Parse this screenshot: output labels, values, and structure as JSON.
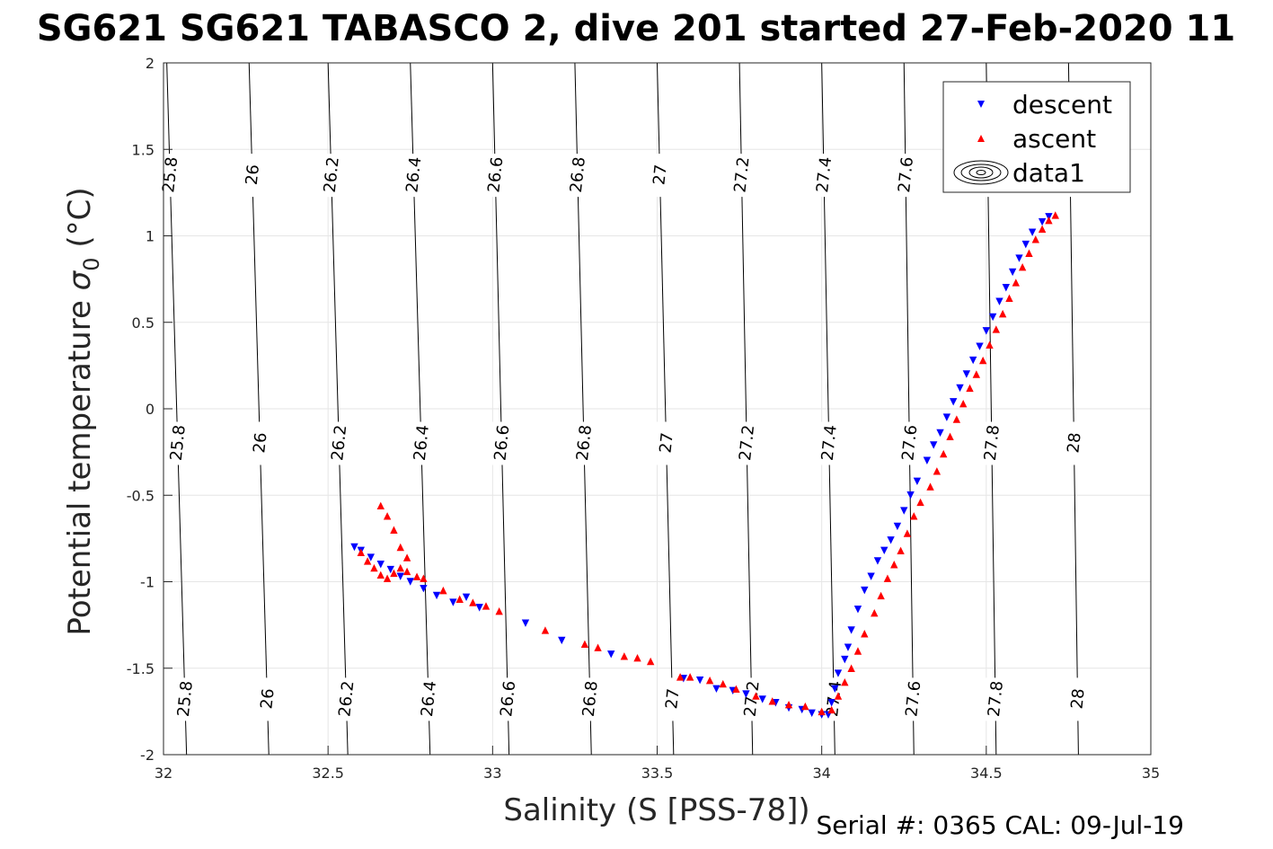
{
  "chart_data": {
    "type": "scatter",
    "title": "SG621 SG621 TABASCO 2, dive 201 started 27-Feb-2020 11",
    "xlabel": "Salinity (S [PSS-78])",
    "ylabel_main": "Potential temperature ",
    "ylabel_symbol": "σ",
    "ylabel_sub": "0",
    "ylabel_unit": " (°C)",
    "xlim": [
      32,
      35
    ],
    "ylim": [
      -2,
      2
    ],
    "xticks": [
      "32",
      "32.5",
      "33",
      "33.5",
      "34",
      "34.5",
      "35"
    ],
    "yticks": [
      "-2",
      "-1.5",
      "-1",
      "-0.5",
      "0",
      "0.5",
      "1",
      "1.5",
      "2"
    ],
    "grid": true,
    "legend_position": "top-right",
    "footnote": "Serial #: 0365  CAL: 09-Jul-19",
    "contour_levels": [
      "25.8",
      "26",
      "26.2",
      "26.4",
      "26.6",
      "26.8",
      "27",
      "27.2",
      "27.4",
      "27.6",
      "27.8",
      "28"
    ],
    "contours": [
      {
        "label": "25.8",
        "x_bottom": 32.07,
        "x_top": 32.01
      },
      {
        "label": "26",
        "x_bottom": 32.32,
        "x_top": 32.26
      },
      {
        "label": "26.2",
        "x_bottom": 32.56,
        "x_top": 32.5
      },
      {
        "label": "26.4",
        "x_bottom": 32.81,
        "x_top": 32.75
      },
      {
        "label": "26.6",
        "x_bottom": 33.05,
        "x_top": 33.0
      },
      {
        "label": "26.8",
        "x_bottom": 33.3,
        "x_top": 33.25
      },
      {
        "label": "27",
        "x_bottom": 33.55,
        "x_top": 33.5
      },
      {
        "label": "27.2",
        "x_bottom": 33.79,
        "x_top": 33.75
      },
      {
        "label": "27.4",
        "x_bottom": 34.04,
        "x_top": 34.0
      },
      {
        "label": "27.6",
        "x_bottom": 34.28,
        "x_top": 34.25
      },
      {
        "label": "27.8",
        "x_bottom": 34.53,
        "x_top": 34.5
      },
      {
        "label": "28",
        "x_bottom": 34.78,
        "x_top": 34.75
      }
    ],
    "series": [
      {
        "name": "descent",
        "color": "#0000ff",
        "marker": "triangle-down",
        "points": [
          [
            32.58,
            -0.8
          ],
          [
            32.6,
            -0.82
          ],
          [
            32.63,
            -0.86
          ],
          [
            32.66,
            -0.9
          ],
          [
            32.69,
            -0.93
          ],
          [
            32.72,
            -0.97
          ],
          [
            32.75,
            -1.0
          ],
          [
            32.79,
            -1.04
          ],
          [
            32.83,
            -1.08
          ],
          [
            32.88,
            -1.12
          ],
          [
            32.92,
            -1.09
          ],
          [
            32.96,
            -1.15
          ],
          [
            33.1,
            -1.24
          ],
          [
            33.21,
            -1.34
          ],
          [
            33.36,
            -1.42
          ],
          [
            33.58,
            -1.56
          ],
          [
            33.63,
            -1.57
          ],
          [
            33.68,
            -1.62
          ],
          [
            33.73,
            -1.63
          ],
          [
            33.77,
            -1.65
          ],
          [
            33.82,
            -1.68
          ],
          [
            33.86,
            -1.7
          ],
          [
            33.9,
            -1.73
          ],
          [
            33.94,
            -1.74
          ],
          [
            33.97,
            -1.76
          ],
          [
            34.0,
            -1.77
          ],
          [
            34.02,
            -1.77
          ],
          [
            34.03,
            -1.7
          ],
          [
            34.04,
            -1.62
          ],
          [
            34.05,
            -1.53
          ],
          [
            34.07,
            -1.45
          ],
          [
            34.08,
            -1.38
          ],
          [
            34.09,
            -1.28
          ],
          [
            34.11,
            -1.16
          ],
          [
            34.13,
            -1.05
          ],
          [
            34.15,
            -0.97
          ],
          [
            34.17,
            -0.88
          ],
          [
            34.19,
            -0.82
          ],
          [
            34.21,
            -0.76
          ],
          [
            34.23,
            -0.68
          ],
          [
            34.25,
            -0.59
          ],
          [
            34.27,
            -0.5
          ],
          [
            34.29,
            -0.42
          ],
          [
            34.32,
            -0.3
          ],
          [
            34.34,
            -0.21
          ],
          [
            34.36,
            -0.14
          ],
          [
            34.38,
            -0.05
          ],
          [
            34.4,
            0.04
          ],
          [
            34.42,
            0.12
          ],
          [
            34.44,
            0.2
          ],
          [
            34.46,
            0.28
          ],
          [
            34.48,
            0.36
          ],
          [
            34.5,
            0.45
          ],
          [
            34.52,
            0.53
          ],
          [
            34.54,
            0.62
          ],
          [
            34.56,
            0.7
          ],
          [
            34.58,
            0.79
          ],
          [
            34.6,
            0.87
          ],
          [
            34.62,
            0.95
          ],
          [
            34.64,
            1.02
          ],
          [
            34.67,
            1.08
          ],
          [
            34.69,
            1.11
          ]
        ]
      },
      {
        "name": "ascent",
        "color": "#ff0000",
        "marker": "triangle-up",
        "points": [
          [
            32.6,
            -0.83
          ],
          [
            32.62,
            -0.88
          ],
          [
            32.64,
            -0.92
          ],
          [
            32.66,
            -0.96
          ],
          [
            32.68,
            -0.98
          ],
          [
            32.7,
            -0.95
          ],
          [
            32.72,
            -0.92
          ],
          [
            32.74,
            -0.94
          ],
          [
            32.77,
            -0.97
          ],
          [
            32.79,
            -0.98
          ],
          [
            32.7,
            -0.7
          ],
          [
            32.68,
            -0.62
          ],
          [
            32.66,
            -0.56
          ],
          [
            32.72,
            -0.8
          ],
          [
            32.74,
            -0.86
          ],
          [
            32.85,
            -1.05
          ],
          [
            32.9,
            -1.1
          ],
          [
            32.94,
            -1.12
          ],
          [
            32.98,
            -1.14
          ],
          [
            33.02,
            -1.17
          ],
          [
            33.16,
            -1.28
          ],
          [
            33.28,
            -1.36
          ],
          [
            33.32,
            -1.38
          ],
          [
            33.4,
            -1.43
          ],
          [
            33.44,
            -1.44
          ],
          [
            33.48,
            -1.46
          ],
          [
            33.57,
            -1.55
          ],
          [
            33.6,
            -1.55
          ],
          [
            33.66,
            -1.57
          ],
          [
            33.7,
            -1.59
          ],
          [
            33.74,
            -1.62
          ],
          [
            33.8,
            -1.66
          ],
          [
            33.85,
            -1.69
          ],
          [
            33.9,
            -1.71
          ],
          [
            33.95,
            -1.72
          ],
          [
            34.0,
            -1.75
          ],
          [
            34.03,
            -1.74
          ],
          [
            34.05,
            -1.66
          ],
          [
            34.07,
            -1.58
          ],
          [
            34.09,
            -1.5
          ],
          [
            34.11,
            -1.4
          ],
          [
            34.13,
            -1.3
          ],
          [
            34.16,
            -1.18
          ],
          [
            34.18,
            -1.08
          ],
          [
            34.2,
            -0.98
          ],
          [
            34.22,
            -0.9
          ],
          [
            34.24,
            -0.82
          ],
          [
            34.26,
            -0.72
          ],
          [
            34.28,
            -0.62
          ],
          [
            34.3,
            -0.54
          ],
          [
            34.33,
            -0.45
          ],
          [
            34.35,
            -0.36
          ],
          [
            34.37,
            -0.26
          ],
          [
            34.39,
            -0.16
          ],
          [
            34.41,
            -0.06
          ],
          [
            34.43,
            0.03
          ],
          [
            34.45,
            0.12
          ],
          [
            34.47,
            0.2
          ],
          [
            34.49,
            0.28
          ],
          [
            34.51,
            0.37
          ],
          [
            34.53,
            0.46
          ],
          [
            34.55,
            0.55
          ],
          [
            34.57,
            0.64
          ],
          [
            34.59,
            0.73
          ],
          [
            34.61,
            0.82
          ],
          [
            34.63,
            0.9
          ],
          [
            34.65,
            0.98
          ],
          [
            34.67,
            1.04
          ],
          [
            34.69,
            1.09
          ],
          [
            34.71,
            1.12
          ]
        ]
      }
    ],
    "legend": [
      {
        "label": "descent",
        "marker": "triangle-down",
        "color": "#0000ff"
      },
      {
        "label": "ascent",
        "marker": "triangle-up",
        "color": "#ff0000"
      },
      {
        "label": "data1",
        "marker": "contour-ellipses",
        "color": "#000000"
      }
    ]
  }
}
